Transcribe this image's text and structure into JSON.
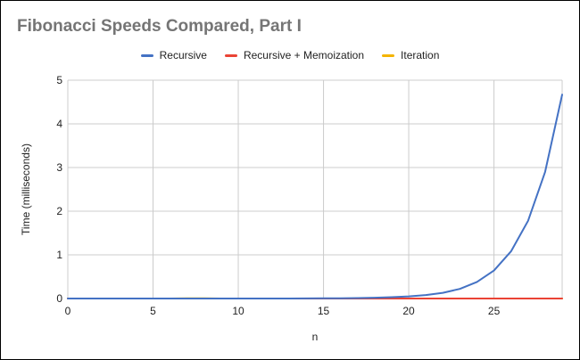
{
  "chart_data": {
    "type": "line",
    "title": "Fibonacci Speeds Compared, Part I",
    "xlabel": "n",
    "ylabel": "Time (milliseconds)",
    "xlim": [
      0,
      29
    ],
    "ylim": [
      0,
      5
    ],
    "xticks": [
      0,
      5,
      10,
      15,
      20,
      25
    ],
    "yticks": [
      0,
      1,
      2,
      3,
      4,
      5
    ],
    "grid": true,
    "legend_position": "top",
    "x": [
      0,
      1,
      2,
      3,
      4,
      5,
      6,
      7,
      8,
      9,
      10,
      11,
      12,
      13,
      14,
      15,
      16,
      17,
      18,
      19,
      20,
      21,
      22,
      23,
      24,
      25,
      26,
      27,
      28,
      29
    ],
    "series": [
      {
        "name": "Recursive",
        "color": "#4472C4",
        "values": [
          0,
          0,
          0,
          0,
          0,
          0,
          0,
          0,
          0,
          0,
          0,
          0,
          0,
          0,
          0.002,
          0.004,
          0.007,
          0.011,
          0.018,
          0.03,
          0.05,
          0.08,
          0.13,
          0.22,
          0.38,
          0.64,
          1.08,
          1.78,
          2.9,
          4.67
        ]
      },
      {
        "name": "Recursive + Memoization",
        "color": "#EA4335",
        "values": [
          0,
          0,
          0,
          0,
          0,
          0,
          0,
          0,
          0,
          0,
          0,
          0,
          0,
          0,
          0,
          0,
          0,
          0,
          0,
          0,
          0,
          0,
          0,
          0,
          0,
          0,
          0,
          0,
          0,
          0
        ]
      },
      {
        "name": "Iteration",
        "color": "#F4B400",
        "values": [
          0,
          0,
          0,
          0,
          0,
          0,
          0,
          0.004,
          0.004,
          0,
          0,
          0,
          0,
          0,
          0,
          0,
          0,
          0,
          0,
          0,
          0,
          0,
          0,
          0,
          0,
          0,
          0,
          0,
          0,
          0
        ]
      }
    ]
  }
}
